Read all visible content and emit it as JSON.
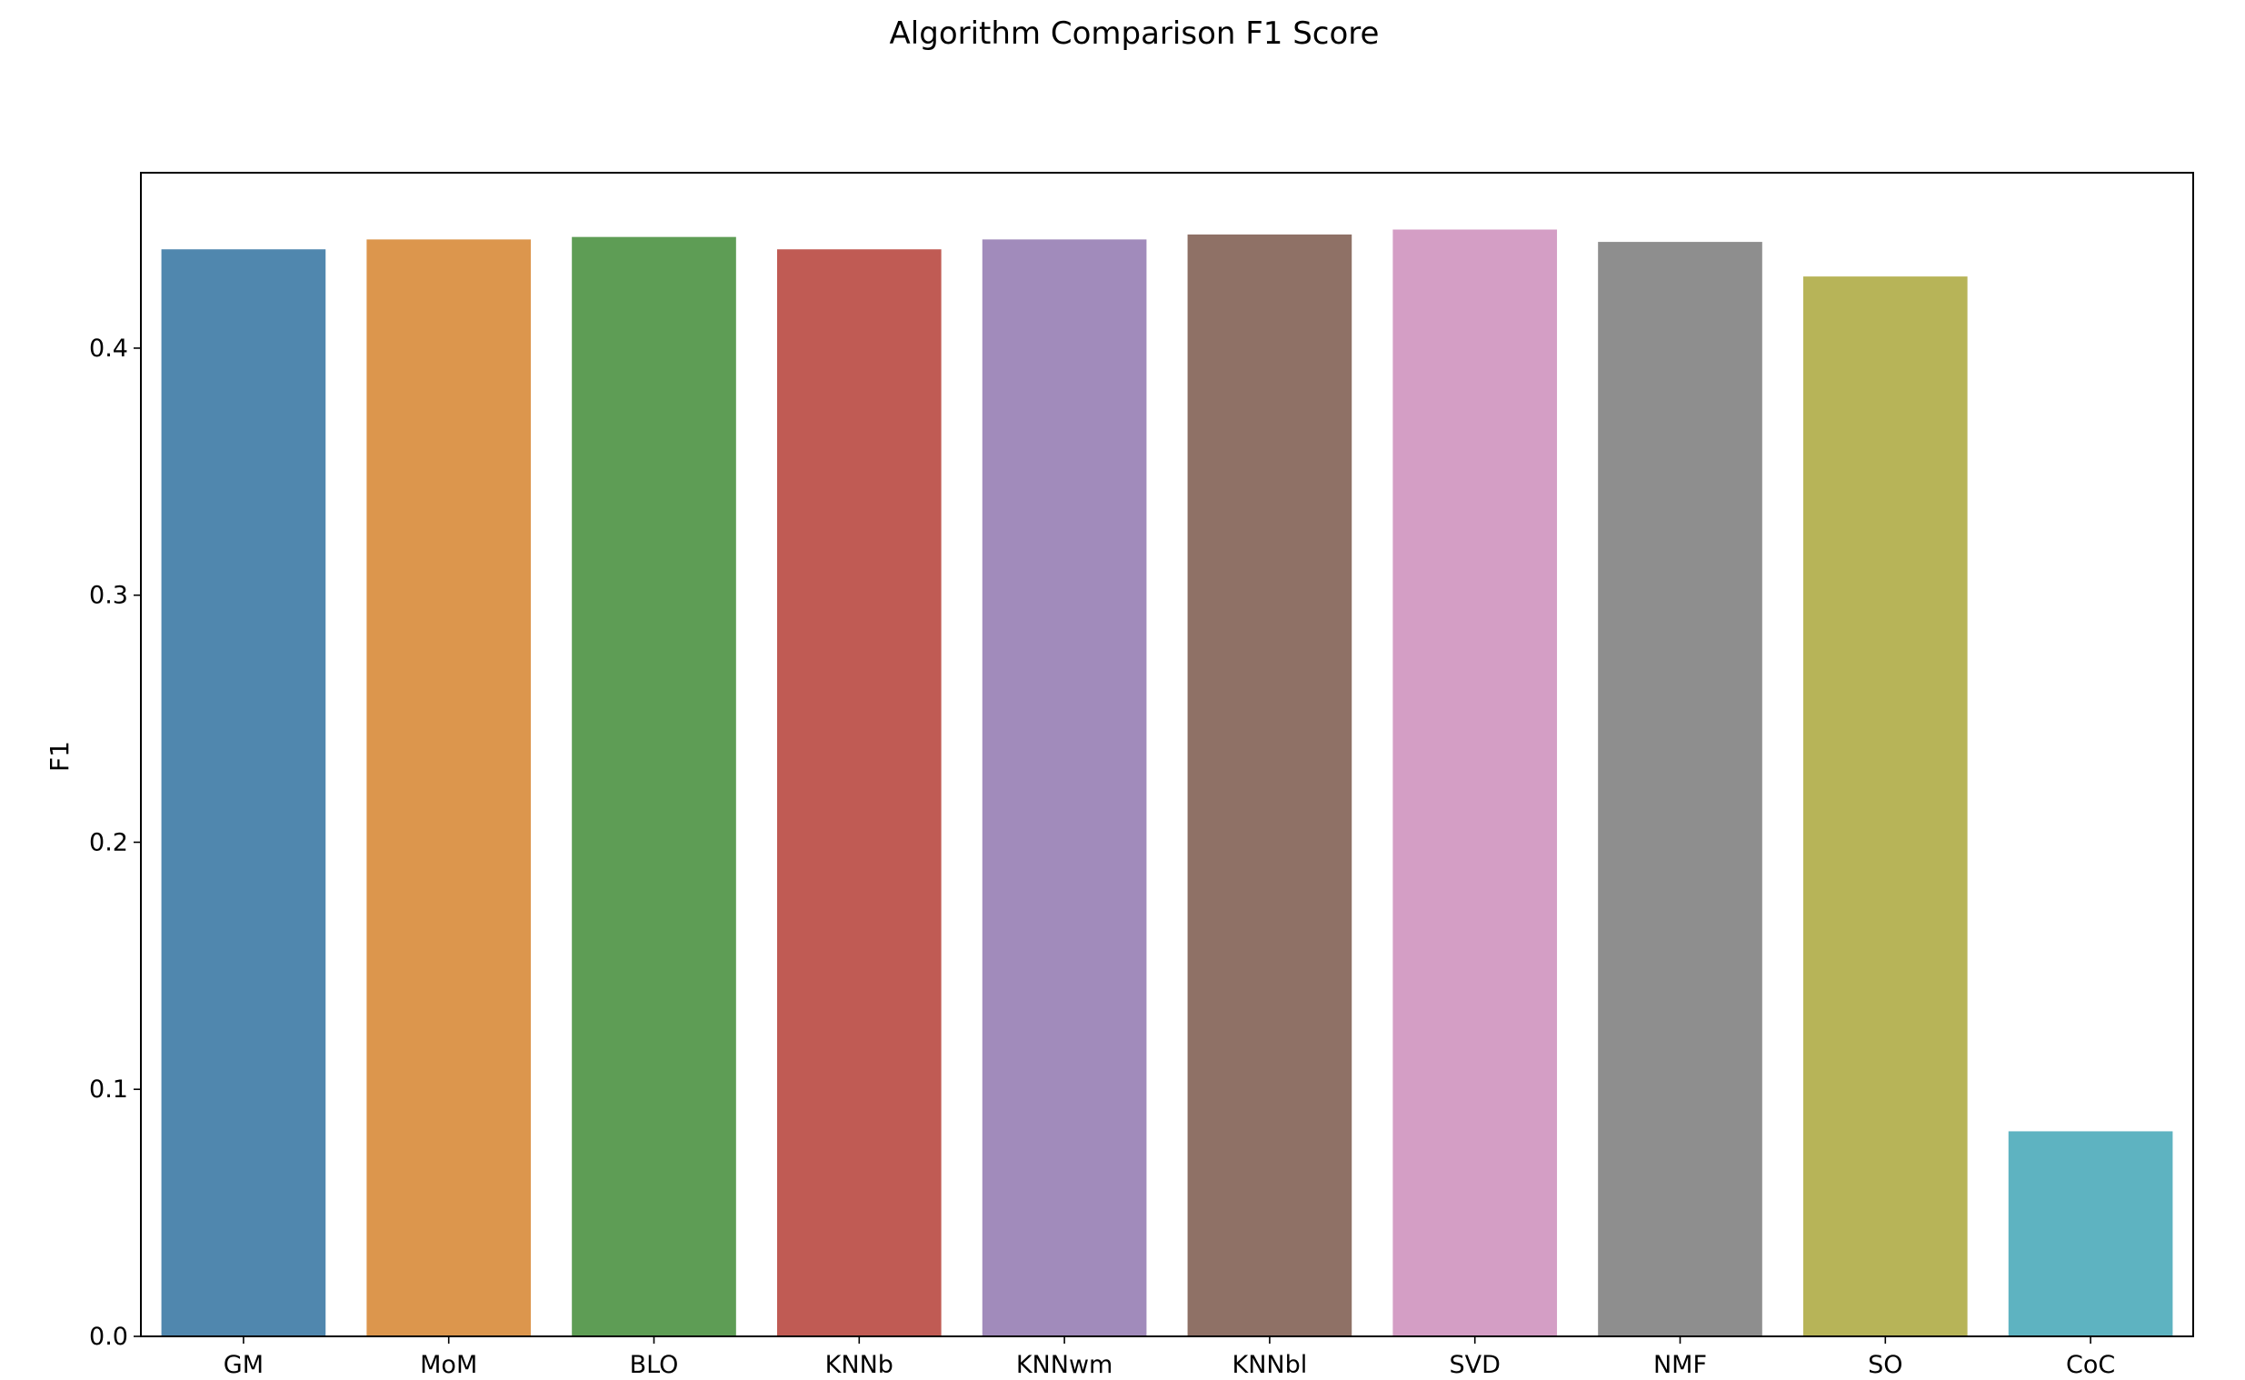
{
  "chart_data": {
    "type": "bar",
    "title": "Algorithm Comparison F1 Score",
    "xlabel": "",
    "ylabel": "F1",
    "categories": [
      "GM",
      "MoM",
      "BLO",
      "KNNb",
      "KNNwm",
      "KNNbl",
      "SVD",
      "NMF",
      "SO",
      "CoC"
    ],
    "values": [
      0.44,
      0.444,
      0.445,
      0.44,
      0.444,
      0.446,
      0.448,
      0.443,
      0.429,
      0.083
    ],
    "colors": [
      "#5087ae",
      "#dc964d",
      "#5e9d55",
      "#c05b54",
      "#a18bbb",
      "#8f7166",
      "#d49ec5",
      "#8e8e8e",
      "#b7b458",
      "#5eb3c1"
    ],
    "ylim": [
      0,
      0.471
    ],
    "yticks": [
      0.0,
      0.1,
      0.2,
      0.3,
      0.4
    ],
    "ytick_labels": [
      "0.0",
      "0.1",
      "0.2",
      "0.3",
      "0.4"
    ],
    "grid": false,
    "legend": "none"
  }
}
